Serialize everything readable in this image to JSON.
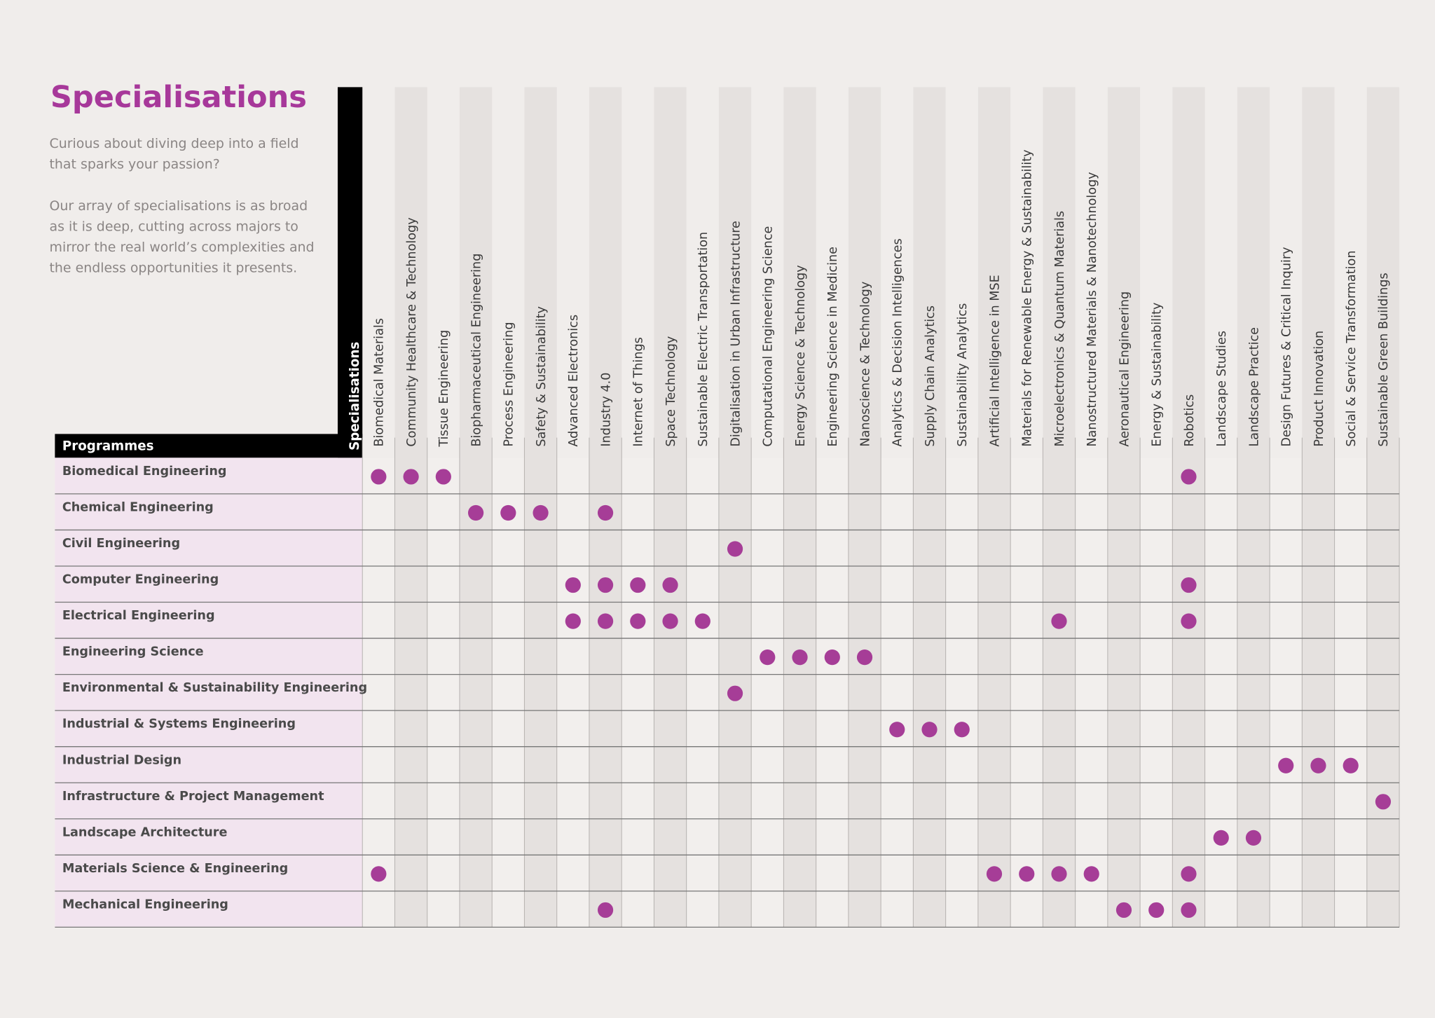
{
  "title": "Specialisations",
  "intro": [
    [
      "Curious about diving deep into a field",
      "that sparks your passion?"
    ],
    [
      "Our array of specialisations is as broad",
      "as it is deep, cutting across majors to",
      "mirror the real world’s complexities and",
      "the endless opportunities it presents."
    ]
  ],
  "table": {
    "column_header": "Specialisations",
    "row_header": "Programmes",
    "columns": [
      "Biomedical Materials",
      "Community Healthcare & Technology",
      "Tissue Engineering",
      "Biopharmaceutical Engineering",
      "Process Engineering",
      "Safety & Sustainability",
      "Advanced Electronics",
      "Industry 4.0",
      "Internet of Things",
      "Space Technology",
      "Sustainable Electric Transportation",
      "Digitalisation in Urban Infrastructure",
      "Computational Engineering Science",
      "Energy Science & Technology",
      "Engineering Science in Medicine",
      "Nanoscience & Technology",
      "Analytics & Decision Intelligences",
      "Supply Chain Analytics",
      "Sustainability Analytics",
      "Artificial Intelligence in MSE",
      "Materials for Renewable Energy & Sustainability",
      "Microelectronics & Quantum Materials",
      "Nanostructured Materials & Nanotechnology",
      "Aeronautical Engineering",
      "Energy & Sustainability",
      "Robotics",
      "Landscape Studies",
      "Landscape Practice",
      "Design Futures & Critical Inquiry",
      "Product Innovation",
      "Social & Service Transformation",
      "Sustainable Green Buildings"
    ],
    "rows": [
      {
        "programme": "Biomedical Engineering",
        "cells": [
          1,
          1,
          1,
          0,
          0,
          0,
          0,
          0,
          0,
          0,
          0,
          0,
          0,
          0,
          0,
          0,
          0,
          0,
          0,
          0,
          0,
          0,
          0,
          0,
          0,
          1,
          0,
          0,
          0,
          0,
          0,
          0
        ]
      },
      {
        "programme": "Chemical Engineering",
        "cells": [
          0,
          0,
          0,
          1,
          1,
          1,
          0,
          1,
          0,
          0,
          0,
          0,
          0,
          0,
          0,
          0,
          0,
          0,
          0,
          0,
          0,
          0,
          0,
          0,
          0,
          0,
          0,
          0,
          0,
          0,
          0,
          0
        ]
      },
      {
        "programme": "Civil Engineering",
        "cells": [
          0,
          0,
          0,
          0,
          0,
          0,
          0,
          0,
          0,
          0,
          0,
          1,
          0,
          0,
          0,
          0,
          0,
          0,
          0,
          0,
          0,
          0,
          0,
          0,
          0,
          0,
          0,
          0,
          0,
          0,
          0,
          0
        ]
      },
      {
        "programme": "Computer Engineering",
        "cells": [
          0,
          0,
          0,
          0,
          0,
          0,
          1,
          1,
          1,
          1,
          0,
          0,
          0,
          0,
          0,
          0,
          0,
          0,
          0,
          0,
          0,
          0,
          0,
          0,
          0,
          1,
          0,
          0,
          0,
          0,
          0,
          0
        ]
      },
      {
        "programme": "Electrical Engineering",
        "cells": [
          0,
          0,
          0,
          0,
          0,
          0,
          1,
          1,
          1,
          1,
          1,
          0,
          0,
          0,
          0,
          0,
          0,
          0,
          0,
          0,
          0,
          1,
          0,
          0,
          0,
          1,
          0,
          0,
          0,
          0,
          0,
          0
        ]
      },
      {
        "programme": "Engineering Science",
        "cells": [
          0,
          0,
          0,
          0,
          0,
          0,
          0,
          0,
          0,
          0,
          0,
          0,
          1,
          1,
          1,
          1,
          0,
          0,
          0,
          0,
          0,
          0,
          0,
          0,
          0,
          0,
          0,
          0,
          0,
          0,
          0,
          0
        ]
      },
      {
        "programme": "Environmental & Sustainability Engineering",
        "cells": [
          0,
          0,
          0,
          0,
          0,
          0,
          0,
          0,
          0,
          0,
          0,
          1,
          0,
          0,
          0,
          0,
          0,
          0,
          0,
          0,
          0,
          0,
          0,
          0,
          0,
          0,
          0,
          0,
          0,
          0,
          0,
          0
        ]
      },
      {
        "programme": "Industrial & Systems Engineering",
        "cells": [
          0,
          0,
          0,
          0,
          0,
          0,
          0,
          0,
          0,
          0,
          0,
          0,
          0,
          0,
          0,
          0,
          1,
          1,
          1,
          0,
          0,
          0,
          0,
          0,
          0,
          0,
          0,
          0,
          0,
          0,
          0,
          0
        ]
      },
      {
        "programme": "Industrial Design",
        "cells": [
          0,
          0,
          0,
          0,
          0,
          0,
          0,
          0,
          0,
          0,
          0,
          0,
          0,
          0,
          0,
          0,
          0,
          0,
          0,
          0,
          0,
          0,
          0,
          0,
          0,
          0,
          0,
          0,
          1,
          1,
          1,
          0
        ]
      },
      {
        "programme": "Infrastructure & Project Management",
        "cells": [
          0,
          0,
          0,
          0,
          0,
          0,
          0,
          0,
          0,
          0,
          0,
          0,
          0,
          0,
          0,
          0,
          0,
          0,
          0,
          0,
          0,
          0,
          0,
          0,
          0,
          0,
          0,
          0,
          0,
          0,
          0,
          1
        ]
      },
      {
        "programme": "Landscape Architecture",
        "cells": [
          0,
          0,
          0,
          0,
          0,
          0,
          0,
          0,
          0,
          0,
          0,
          0,
          0,
          0,
          0,
          0,
          0,
          0,
          0,
          0,
          0,
          0,
          0,
          0,
          0,
          0,
          1,
          1,
          0,
          0,
          0,
          0
        ]
      },
      {
        "programme": "Materials Science & Engineering",
        "cells": [
          1,
          0,
          0,
          0,
          0,
          0,
          0,
          0,
          0,
          0,
          0,
          0,
          0,
          0,
          0,
          0,
          0,
          0,
          0,
          1,
          1,
          1,
          1,
          0,
          0,
          1,
          0,
          0,
          0,
          0,
          0,
          0
        ]
      },
      {
        "programme": "Mechanical Engineering",
        "cells": [
          0,
          0,
          0,
          0,
          0,
          0,
          0,
          1,
          0,
          0,
          0,
          0,
          0,
          0,
          0,
          0,
          0,
          0,
          0,
          0,
          0,
          0,
          0,
          1,
          1,
          1,
          0,
          0,
          0,
          0,
          0,
          0
        ]
      }
    ]
  }
}
